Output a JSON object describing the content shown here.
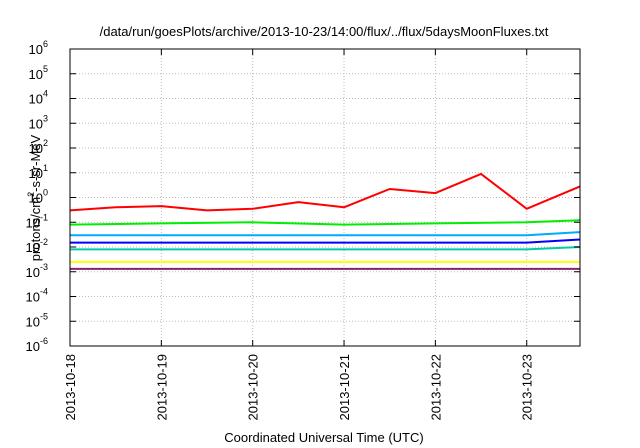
{
  "chart_data": {
    "type": "line",
    "title": "/data/run/goesPlots/archive/2013-10-23/14:00/flux/../flux/5daysMoonFluxes.txt",
    "xlabel": "Coordinated Universal Time (UTC)",
    "ylabel": {
      "base": "protons/cm",
      "sup": "2",
      "rest": "-s-sr-MeV"
    },
    "y_scale": "log",
    "ylim": [
      1e-06,
      1000000.0
    ],
    "yticks": [
      {
        "base": "10",
        "exp": "-6",
        "value": 1e-06
      },
      {
        "base": "10",
        "exp": "-5",
        "value": 1e-05
      },
      {
        "base": "10",
        "exp": "-4",
        "value": 0.0001
      },
      {
        "base": "10",
        "exp": "-3",
        "value": 0.001
      },
      {
        "base": "10",
        "exp": "-2",
        "value": 0.01
      },
      {
        "base": "10",
        "exp": "-1",
        "value": 0.1
      },
      {
        "base": "10",
        "exp": "0",
        "value": 1
      },
      {
        "base": "10",
        "exp": "1",
        "value": 10.0
      },
      {
        "base": "10",
        "exp": "2",
        "value": 100.0
      },
      {
        "base": "10",
        "exp": "3",
        "value": 1000.0
      },
      {
        "base": "10",
        "exp": "4",
        "value": 10000.0
      },
      {
        "base": "10",
        "exp": "5",
        "value": 100000.0
      },
      {
        "base": "10",
        "exp": "6",
        "value": 1000000.0
      }
    ],
    "x_start": "2013-10-18",
    "x_end": "2013-10-23 14:00",
    "xticks": [
      "2013-10-18",
      "2013-10-19",
      "2013-10-20",
      "2013-10-21",
      "2013-10-22",
      "2013-10-23"
    ],
    "grid": true,
    "legend": "none",
    "series": [
      {
        "color": "#ff0000",
        "x": [
          "2013-10-18 00:00",
          "2013-10-18 12:00",
          "2013-10-19 00:00",
          "2013-10-19 12:00",
          "2013-10-20 00:00",
          "2013-10-20 12:00",
          "2013-10-21 00:00",
          "2013-10-21 12:00",
          "2013-10-22 00:00",
          "2013-10-22 12:00",
          "2013-10-23 00:00",
          "2013-10-23 14:00"
        ],
        "y": [
          0.3,
          0.4,
          0.45,
          0.3,
          0.35,
          0.65,
          0.4,
          2.2,
          1.5,
          9,
          0.35,
          2.8
        ]
      },
      {
        "color": "#00ee00",
        "x": [
          "2013-10-18 00:00",
          "2013-10-19 00:00",
          "2013-10-20 00:00",
          "2013-10-21 00:00",
          "2013-10-22 00:00",
          "2013-10-23 00:00",
          "2013-10-23 14:00"
        ],
        "y": [
          0.08,
          0.09,
          0.1,
          0.08,
          0.09,
          0.1,
          0.12
        ]
      },
      {
        "color": "#00aaff",
        "x": [
          "2013-10-18 00:00",
          "2013-10-19 00:00",
          "2013-10-20 00:00",
          "2013-10-21 00:00",
          "2013-10-22 00:00",
          "2013-10-23 00:00",
          "2013-10-23 14:00"
        ],
        "y": [
          0.03,
          0.03,
          0.03,
          0.03,
          0.03,
          0.03,
          0.04
        ]
      },
      {
        "color": "#0000ff",
        "x": [
          "2013-10-18 00:00",
          "2013-10-19 00:00",
          "2013-10-20 00:00",
          "2013-10-21 00:00",
          "2013-10-22 00:00",
          "2013-10-23 00:00",
          "2013-10-23 14:00"
        ],
        "y": [
          0.015,
          0.015,
          0.015,
          0.015,
          0.015,
          0.015,
          0.02
        ]
      },
      {
        "color": "#00ccaa",
        "x": [
          "2013-10-18 00:00",
          "2013-10-19 00:00",
          "2013-10-20 00:00",
          "2013-10-21 00:00",
          "2013-10-22 00:00",
          "2013-10-23 00:00",
          "2013-10-23 14:00"
        ],
        "y": [
          0.008,
          0.008,
          0.008,
          0.008,
          0.008,
          0.008,
          0.01
        ]
      },
      {
        "color": "#ffff00",
        "x": [
          "2013-10-18 00:00",
          "2013-10-19 00:00",
          "2013-10-20 00:00",
          "2013-10-21 00:00",
          "2013-10-22 00:00",
          "2013-10-23 00:00",
          "2013-10-23 14:00"
        ],
        "y": [
          0.0025,
          0.0025,
          0.0025,
          0.0025,
          0.0025,
          0.0025,
          0.0025
        ]
      },
      {
        "color": "#882266",
        "x": [
          "2013-10-18 00:00",
          "2013-10-19 00:00",
          "2013-10-20 00:00",
          "2013-10-21 00:00",
          "2013-10-22 00:00",
          "2013-10-23 00:00",
          "2013-10-23 14:00"
        ],
        "y": [
          0.0013,
          0.0013,
          0.0013,
          0.0013,
          0.0013,
          0.0013,
          0.0013
        ]
      }
    ]
  }
}
